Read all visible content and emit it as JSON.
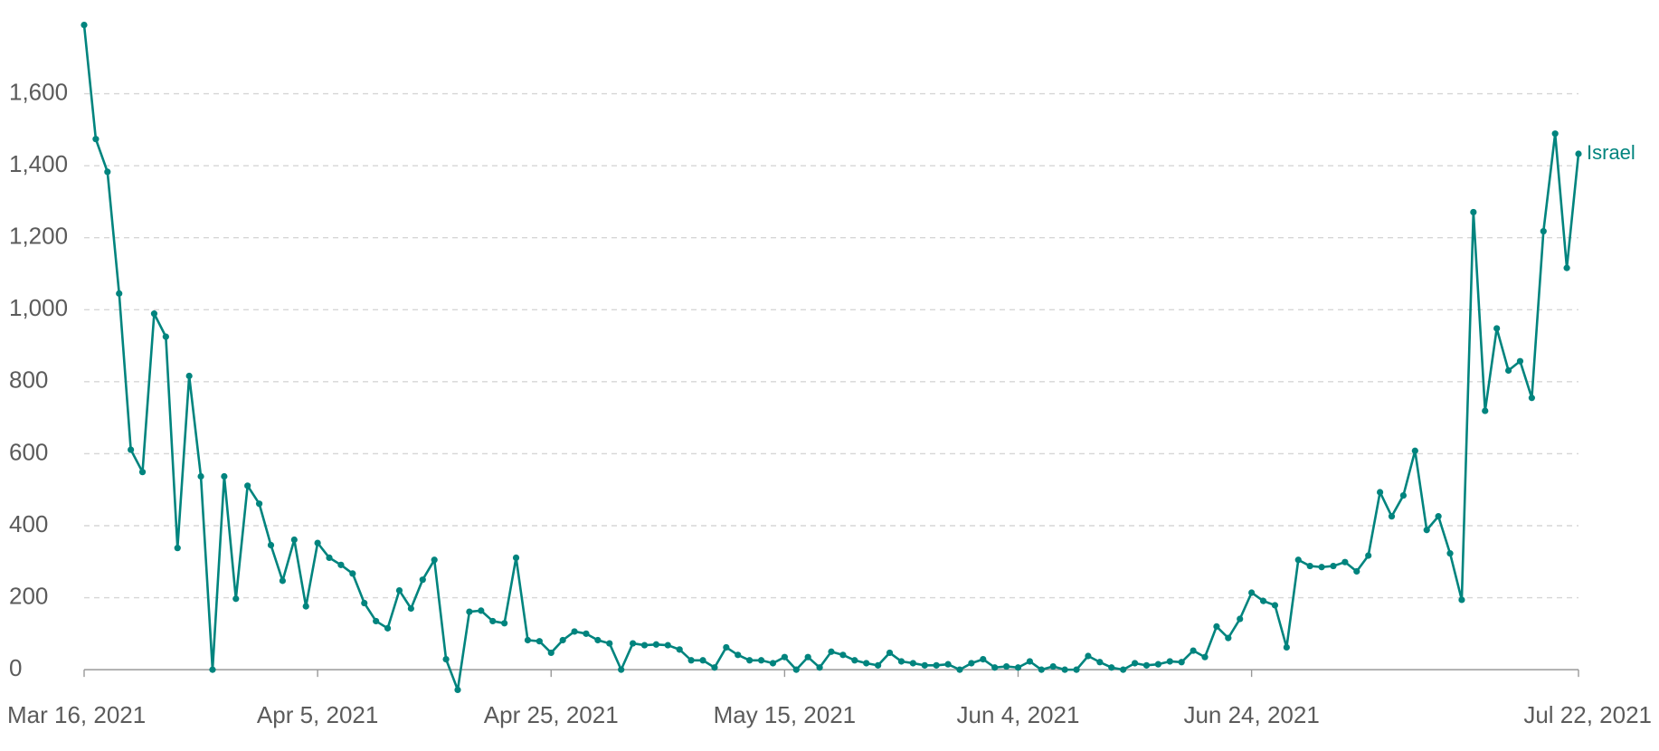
{
  "chart_data": {
    "type": "line",
    "x": [
      "2021-03-16",
      "2021-03-17",
      "2021-03-18",
      "2021-03-19",
      "2021-03-20",
      "2021-03-21",
      "2021-03-22",
      "2021-03-23",
      "2021-03-24",
      "2021-03-25",
      "2021-03-26",
      "2021-03-27",
      "2021-03-28",
      "2021-03-29",
      "2021-03-30",
      "2021-03-31",
      "2021-04-01",
      "2021-04-02",
      "2021-04-03",
      "2021-04-04",
      "2021-04-05",
      "2021-04-06",
      "2021-04-07",
      "2021-04-08",
      "2021-04-09",
      "2021-04-10",
      "2021-04-11",
      "2021-04-12",
      "2021-04-13",
      "2021-04-14",
      "2021-04-15",
      "2021-04-16",
      "2021-04-17",
      "2021-04-18",
      "2021-04-19",
      "2021-04-20",
      "2021-04-21",
      "2021-04-22",
      "2021-04-23",
      "2021-04-24",
      "2021-04-25",
      "2021-04-26",
      "2021-04-27",
      "2021-04-28",
      "2021-04-29",
      "2021-04-30",
      "2021-05-01",
      "2021-05-02",
      "2021-05-03",
      "2021-05-04",
      "2021-05-05",
      "2021-05-06",
      "2021-05-07",
      "2021-05-08",
      "2021-05-09",
      "2021-05-10",
      "2021-05-11",
      "2021-05-12",
      "2021-05-13",
      "2021-05-14",
      "2021-05-15",
      "2021-05-16",
      "2021-05-17",
      "2021-05-18",
      "2021-05-19",
      "2021-05-20",
      "2021-05-21",
      "2021-05-22",
      "2021-05-23",
      "2021-05-24",
      "2021-05-25",
      "2021-05-26",
      "2021-05-27",
      "2021-05-28",
      "2021-05-29",
      "2021-05-30",
      "2021-05-31",
      "2021-06-01",
      "2021-06-02",
      "2021-06-03",
      "2021-06-04",
      "2021-06-05",
      "2021-06-06",
      "2021-06-07",
      "2021-06-08",
      "2021-06-09",
      "2021-06-10",
      "2021-06-11",
      "2021-06-12",
      "2021-06-13",
      "2021-06-14",
      "2021-06-15",
      "2021-06-16",
      "2021-06-17",
      "2021-06-18",
      "2021-06-19",
      "2021-06-20",
      "2021-06-21",
      "2021-06-22",
      "2021-06-23",
      "2021-06-24",
      "2021-06-25",
      "2021-06-26",
      "2021-06-27",
      "2021-06-28",
      "2021-06-29",
      "2021-06-30",
      "2021-07-01",
      "2021-07-02",
      "2021-07-03",
      "2021-07-04",
      "2021-07-05",
      "2021-07-06",
      "2021-07-07",
      "2021-07-08",
      "2021-07-09",
      "2021-07-10",
      "2021-07-11",
      "2021-07-12",
      "2021-07-13",
      "2021-07-14",
      "2021-07-15",
      "2021-07-16",
      "2021-07-17",
      "2021-07-18",
      "2021-07-19",
      "2021-07-20",
      "2021-07-21",
      "2021-07-22"
    ],
    "series": [
      {
        "name": "Israel",
        "color": "#00847e",
        "values": [
          1791,
          1474,
          1383,
          1045,
          611,
          549,
          989,
          925,
          338,
          816,
          537,
          0,
          537,
          197,
          511,
          461,
          346,
          247,
          361,
          176,
          352,
          311,
          291,
          267,
          185,
          135,
          115,
          220,
          170,
          250,
          305,
          29,
          -56,
          161,
          164,
          135,
          129,
          311,
          82,
          79,
          47,
          82,
          106,
          100,
          82,
          73,
          0,
          73,
          68,
          70,
          68,
          56,
          26,
          26,
          6,
          62,
          41,
          26,
          26,
          18,
          35,
          0,
          35,
          6,
          50,
          41,
          26,
          18,
          12,
          47,
          23,
          18,
          12,
          12,
          15,
          0,
          18,
          29,
          6,
          9,
          6,
          23,
          0,
          9,
          0,
          0,
          38,
          21,
          6,
          0,
          18,
          12,
          15,
          23,
          21,
          53,
          35,
          120,
          88,
          141,
          214,
          191,
          179,
          62,
          305,
          288,
          285,
          288,
          299,
          273,
          317,
          493,
          426,
          484,
          608,
          388,
          426,
          323,
          194,
          1271,
          719,
          948,
          831,
          857,
          755,
          1218,
          1489,
          1116,
          1433
        ]
      }
    ],
    "xlim": [
      "2021-03-16",
      "2021-07-22"
    ],
    "xticks": [
      {
        "value": "2021-03-16",
        "label": "Mar 16, 2021"
      },
      {
        "value": "2021-04-05",
        "label": "Apr 5, 2021"
      },
      {
        "value": "2021-04-25",
        "label": "Apr 25, 2021"
      },
      {
        "value": "2021-05-15",
        "label": "May 15, 2021"
      },
      {
        "value": "2021-06-04",
        "label": "Jun 4, 2021"
      },
      {
        "value": "2021-06-24",
        "label": "Jun 24, 2021"
      },
      {
        "value": "2021-07-22",
        "label": "Jul 22, 2021"
      }
    ],
    "ylim": [
      -60,
      1800
    ],
    "yticks": [
      0,
      200,
      400,
      600,
      800,
      {
        "value": 1000,
        "label": "1,000"
      },
      {
        "value": 1200,
        "label": "1,200"
      },
      {
        "value": 1400,
        "label": "1,400"
      },
      {
        "value": 1600,
        "label": "1,600"
      }
    ],
    "grid": true
  }
}
